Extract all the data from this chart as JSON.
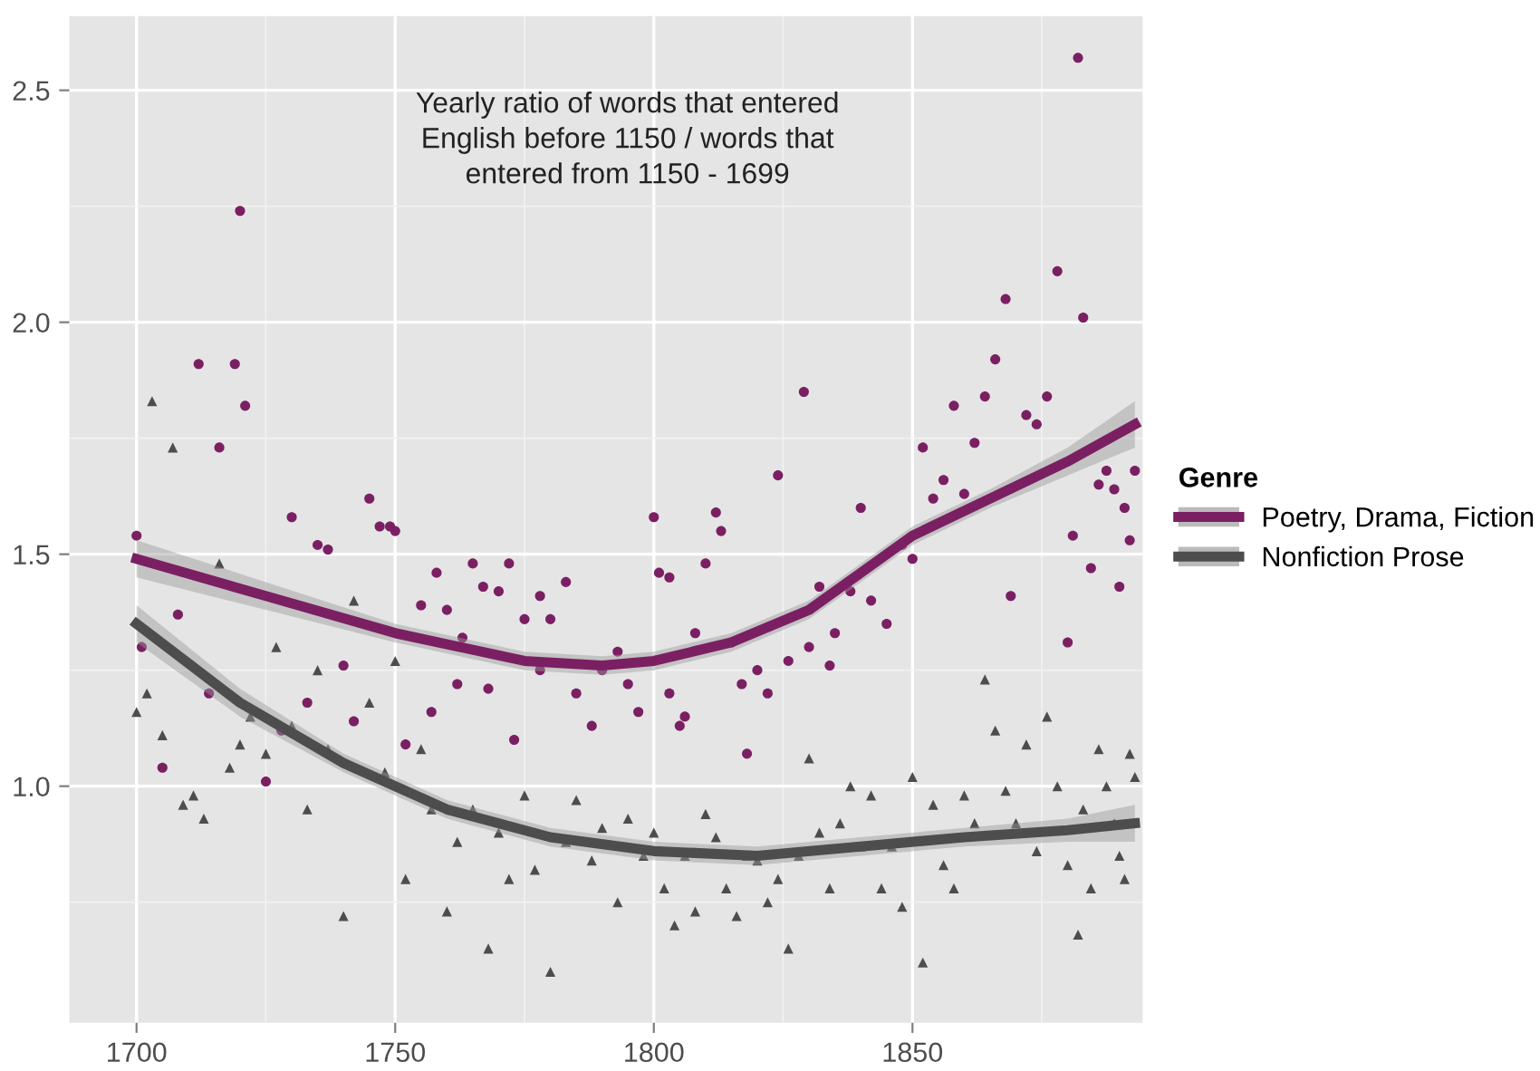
{
  "chart_data": {
    "type": "scatter",
    "annotations": [
      "Yearly ratio of words that entered\nEnglish before 1150 / words that\nentered from 1150 - 1699"
    ],
    "legend_title": "Genre",
    "legend": "right",
    "grid": true,
    "xlim": [
      1687,
      1894.5
    ],
    "ylim": [
      0.49,
      2.66
    ],
    "xticks": [
      1700,
      1750,
      1800,
      1850
    ],
    "yticks": [
      {
        "value": 1.0,
        "label": "1.0"
      },
      1.5,
      {
        "value": 2.0,
        "label": "2.0"
      },
      2.5
    ],
    "series": [
      {
        "marker": "circle",
        "color": "#7b1f63",
        "x": [
          1700,
          1701,
          1705,
          1708,
          1712,
          1714,
          1716,
          1719,
          1720,
          1721,
          1725,
          1728,
          1730,
          1733,
          1735,
          1737,
          1740,
          1742,
          1745,
          1747,
          1749,
          1750,
          1752,
          1755,
          1757,
          1758,
          1760,
          1762,
          1763,
          1765,
          1767,
          1768,
          1770,
          1772,
          1773,
          1775,
          1778,
          1778,
          1780,
          1783,
          1785,
          1788,
          1790,
          1793,
          1795,
          1797,
          1800,
          1801,
          1803,
          1803,
          1805,
          1806,
          1808,
          1810,
          1812,
          1813,
          1815,
          1817,
          1818,
          1820,
          1822,
          1824,
          1826,
          1829,
          1830,
          1832,
          1834,
          1835,
          1838,
          1840,
          1842,
          1845,
          1848,
          1850,
          1852,
          1854,
          1856,
          1858,
          1860,
          1862,
          1864,
          1866,
          1868,
          1869,
          1872,
          1874,
          1876,
          1878,
          1880,
          1881,
          1882,
          1883,
          1884.5,
          1886,
          1887.5,
          1889,
          1890,
          1891,
          1892,
          1893
        ],
        "values": [
          1.54,
          1.3,
          1.04,
          1.37,
          1.91,
          1.2,
          1.73,
          1.91,
          2.24,
          1.82,
          1.01,
          1.12,
          1.58,
          1.18,
          1.52,
          1.51,
          1.26,
          1.14,
          1.62,
          1.56,
          1.56,
          1.55,
          1.09,
          1.39,
          1.16,
          1.46,
          1.38,
          1.22,
          1.32,
          1.48,
          1.43,
          1.21,
          1.42,
          1.48,
          1.1,
          1.36,
          1.41,
          1.25,
          1.36,
          1.44,
          1.2,
          1.13,
          1.25,
          1.29,
          1.22,
          1.16,
          1.58,
          1.46,
          1.45,
          1.2,
          1.13,
          1.15,
          1.33,
          1.48,
          1.59,
          1.55,
          1.31,
          1.22,
          1.07,
          1.25,
          1.2,
          1.67,
          1.27,
          1.85,
          1.3,
          1.43,
          1.26,
          1.33,
          1.42,
          1.6,
          1.4,
          1.35,
          1.52,
          1.49,
          1.73,
          1.62,
          1.66,
          1.82,
          1.63,
          1.74,
          1.84,
          1.92,
          2.05,
          1.41,
          1.8,
          1.78,
          1.84,
          2.11,
          1.31,
          1.54,
          2.57,
          2.01,
          1.47,
          1.65,
          1.68,
          1.64,
          1.43,
          1.6,
          1.53,
          1.68
        ]
      },
      {
        "marker": "triangle",
        "color": "#4d4d4d",
        "x": [
          1700,
          1702,
          1703,
          1705,
          1707,
          1709,
          1711,
          1713,
          1716,
          1718,
          1720,
          1722,
          1725,
          1727,
          1730,
          1733,
          1735,
          1737,
          1740,
          1742,
          1745,
          1748,
          1750,
          1752,
          1755,
          1757,
          1760,
          1762,
          1765,
          1768,
          1770,
          1772,
          1775,
          1777,
          1780,
          1783,
          1785,
          1788,
          1790,
          1793,
          1795,
          1798,
          1800,
          1802,
          1804,
          1806,
          1808,
          1810,
          1812,
          1814,
          1816,
          1818,
          1820,
          1822,
          1824,
          1826,
          1828,
          1830,
          1832,
          1834,
          1836,
          1838,
          1840,
          1842,
          1844,
          1846,
          1848,
          1850,
          1852,
          1854,
          1856,
          1858,
          1860,
          1862,
          1864,
          1866,
          1868,
          1870,
          1872,
          1874,
          1876,
          1878,
          1880,
          1882,
          1883,
          1884.5,
          1886,
          1887.5,
          1889,
          1890,
          1891,
          1892,
          1893
        ],
        "values": [
          1.16,
          1.2,
          1.83,
          1.11,
          1.73,
          0.96,
          0.98,
          0.93,
          1.48,
          1.04,
          1.09,
          1.15,
          1.07,
          1.3,
          1.13,
          0.95,
          1.25,
          1.08,
          0.72,
          1.4,
          1.18,
          1.03,
          1.27,
          0.8,
          1.08,
          0.95,
          0.73,
          0.88,
          0.95,
          0.65,
          0.9,
          0.8,
          0.98,
          0.82,
          0.6,
          0.88,
          0.97,
          0.84,
          0.91,
          0.75,
          0.93,
          0.85,
          0.9,
          0.78,
          0.7,
          0.85,
          0.73,
          0.94,
          0.89,
          0.78,
          0.72,
          0.85,
          0.84,
          0.75,
          0.8,
          0.65,
          0.85,
          1.06,
          0.9,
          0.78,
          0.92,
          1.0,
          0.87,
          0.98,
          0.78,
          0.87,
          0.74,
          1.02,
          0.62,
          0.96,
          0.83,
          0.78,
          0.98,
          0.92,
          1.23,
          1.12,
          0.99,
          0.92,
          1.09,
          0.86,
          1.15,
          1.0,
          0.83,
          0.68,
          0.95,
          0.78,
          1.08,
          1.0,
          0.92,
          0.85,
          0.8,
          1.07,
          1.02
        ]
      },
      {
        "type": "line",
        "name": "Poetry, Drama, Fiction",
        "color": "#7b1f63",
        "x": [
          1700,
          1725,
          1750,
          1775,
          1790,
          1800,
          1815,
          1830,
          1840,
          1850,
          1865,
          1880,
          1893
        ],
        "values": [
          1.49,
          1.41,
          1.33,
          1.27,
          1.26,
          1.27,
          1.31,
          1.38,
          1.46,
          1.54,
          1.62,
          1.7,
          1.78
        ],
        "lower": [
          1.45,
          1.38,
          1.31,
          1.25,
          1.24,
          1.25,
          1.29,
          1.36,
          1.44,
          1.52,
          1.6,
          1.67,
          1.73
        ],
        "upper": [
          1.53,
          1.44,
          1.35,
          1.29,
          1.28,
          1.29,
          1.33,
          1.4,
          1.48,
          1.56,
          1.64,
          1.73,
          1.83
        ]
      },
      {
        "type": "line",
        "name": "Nonfiction Prose",
        "color": "#4d4d4d",
        "x": [
          1700,
          1720,
          1740,
          1760,
          1780,
          1800,
          1820,
          1840,
          1860,
          1880,
          1893
        ],
        "values": [
          1.35,
          1.18,
          1.05,
          0.95,
          0.89,
          0.86,
          0.85,
          0.87,
          0.89,
          0.905,
          0.92
        ],
        "lower": [
          1.31,
          1.15,
          1.03,
          0.93,
          0.87,
          0.84,
          0.83,
          0.85,
          0.87,
          0.88,
          0.88
        ],
        "upper": [
          1.39,
          1.21,
          1.07,
          0.97,
          0.91,
          0.88,
          0.87,
          0.89,
          0.91,
          0.93,
          0.96
        ]
      }
    ]
  }
}
